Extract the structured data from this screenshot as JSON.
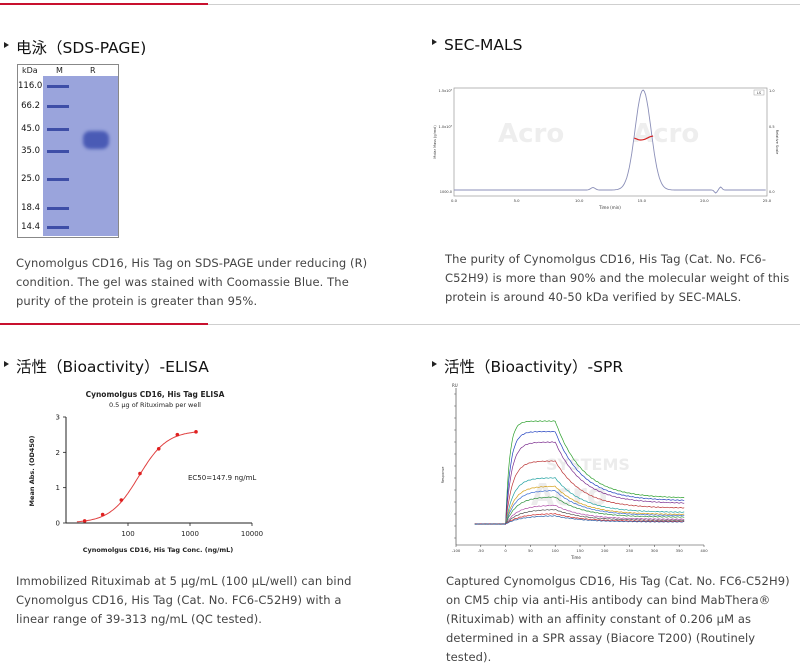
{
  "sections": {
    "sds": {
      "title": "电泳（SDS-PAGE)",
      "caption_lines": [
        "Cynomolgus CD16, His Tag on SDS-PAGE under reducing (R)",
        "condition. The gel was stained with Coomassie Blue. The",
        "purity of the protein is greater than 95%."
      ],
      "gel": {
        "col_kda": "kDa",
        "col_m": "M",
        "col_r": "R",
        "markers": [
          "116.0",
          "66.2",
          "45.0",
          "35.0",
          "25.0",
          "18.4",
          "14.4"
        ]
      }
    },
    "secmals": {
      "title": "SEC-MALS",
      "caption_lines": [
        "The purity of Cynomolgus CD16, His Tag (Cat. No. FC6-",
        "C52H9) is more than 90% and the molecular weight of this",
        "protein is around 40-50 kDa verified by SEC-MALS."
      ]
    },
    "elisa": {
      "title": "活性（Bioactivity）-ELISA",
      "caption_lines": [
        "Immobilized Rituximab at 5 μg/mL (100 μL/well) can bind",
        "Cynomolgus CD16, His Tag (Cat. No. FC6-C52H9) with a",
        "linear range of 39-313 ng/mL (QC tested)."
      ]
    },
    "spr": {
      "title": "活性（Bioactivity）-SPR",
      "caption_lines": [
        "Captured Cynomolgus CD16, His Tag (Cat. No. FC6-C52H9)",
        "on CM5 chip via anti-His antibody can bind MabThera®",
        "(Rituximab) with an affinity constant of 0.206 μM as",
        "determined in a SPR assay (Biacore T200) (Routinely tested)."
      ]
    }
  },
  "chart_data": [
    {
      "type": "line",
      "id": "sec-mals",
      "xlabel": "Time (min)",
      "ylabel": "Molar Mass (g/mol)",
      "y2label": "Relative Scale",
      "xticks": [
        "0.0",
        "5.0",
        "10.0",
        "15.0",
        "20.0",
        "25.0"
      ],
      "yticks": [
        "1000.0",
        "1.0x10⁵",
        "1.5x10⁵"
      ],
      "y2ticks": [
        "0.0",
        "0.5",
        "1.0"
      ],
      "legend": "LS",
      "peak_time": 15.1
    },
    {
      "type": "scatter",
      "id": "elisa",
      "title": "Cynomolgus CD16, His Tag ELISA",
      "subtitle": "0.5 μg of Rituximab per well",
      "xlabel": "Cynomolgus CD16, His Tag Conc. (ng/mL)",
      "ylabel": "Mean Abs. (OD450)",
      "xscale": "log",
      "xlim": [
        10,
        10000
      ],
      "ylim": [
        0,
        3
      ],
      "xticks": [
        "100",
        "1000",
        "10000"
      ],
      "yticks": [
        "0",
        "1",
        "2",
        "3"
      ],
      "annotation": "EC50=147.9 ng/mL",
      "x": [
        20,
        39,
        78,
        156,
        313,
        625,
        1250
      ],
      "y": [
        0.06,
        0.24,
        0.65,
        1.4,
        2.1,
        2.5,
        2.58
      ],
      "colors": {
        "point": "#e02020",
        "line": "#e04040"
      }
    },
    {
      "type": "line",
      "id": "spr",
      "xlabel": "Time",
      "ylabel": "Response",
      "yunit": "RU",
      "xlim": [
        -100,
        400
      ],
      "xticks": [
        "-100",
        "-50",
        "0",
        "50",
        "100",
        "150",
        "200",
        "250",
        "300",
        "350",
        "400"
      ],
      "series_plateaus": [
        2.45,
        2.2,
        1.95,
        1.5,
        1.1,
        0.9,
        0.8,
        0.65,
        0.45,
        0.35,
        0.25,
        0.2
      ]
    }
  ]
}
